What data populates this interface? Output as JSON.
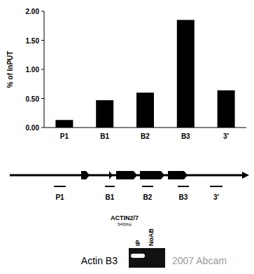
{
  "chart_data": {
    "type": "bar",
    "y_label": "% of InPUT",
    "categories": [
      "P1",
      "B1",
      "B2",
      "B3",
      "3'"
    ],
    "values": [
      0.13,
      0.47,
      0.6,
      1.85,
      0.64
    ],
    "color": "#000000",
    "ylim": [
      0,
      2
    ],
    "yticks": [
      {
        "value": 0,
        "label": "0.00"
      },
      {
        "value": 0.5,
        "label": "0.50"
      },
      {
        "value": 1,
        "label": "1.00"
      },
      {
        "value": 1.5,
        "label": "1.50"
      },
      {
        "value": 2,
        "label": "2.00"
      }
    ],
    "grid": false
  },
  "diagram": {
    "fragments": [
      "P1",
      "B1",
      "B2",
      "B3",
      "3'"
    ],
    "gene": "ACTIN2/7",
    "length": "5400bp"
  },
  "gel": {
    "lanes": [
      "IP",
      "NoAB"
    ],
    "label": "Actin B3",
    "watermark": "2007 Abcam"
  }
}
